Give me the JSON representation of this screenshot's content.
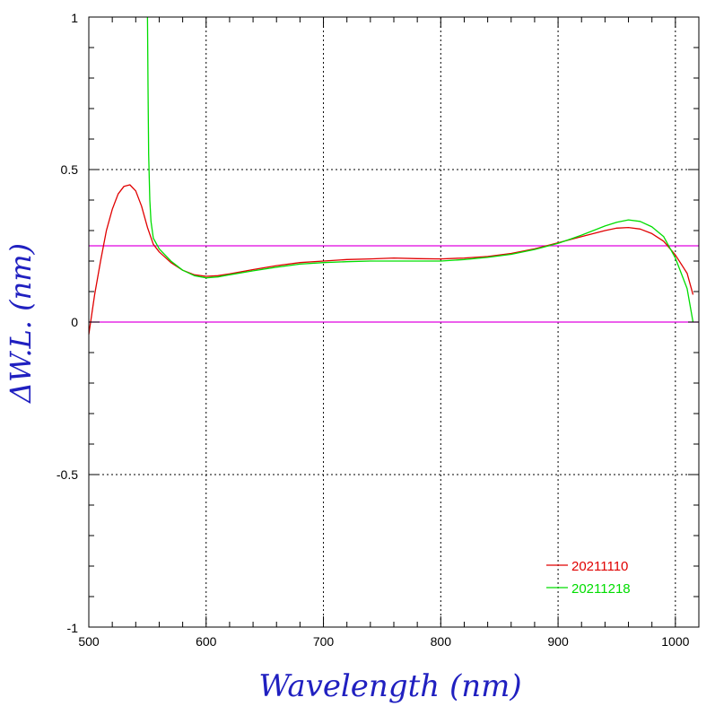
{
  "chart_data": {
    "type": "line",
    "title": "",
    "xlabel": "Wavelength (nm)",
    "ylabel": "ΔW.L. (nm)",
    "xlim": [
      500,
      1020
    ],
    "ylim": [
      -1,
      1
    ],
    "x_ticks": [
      500,
      600,
      700,
      800,
      900,
      1000
    ],
    "x_tick_labels": [
      "500",
      "600",
      "700",
      "800",
      "900",
      "1000"
    ],
    "y_ticks": [
      -1,
      -0.5,
      0,
      0.5,
      1
    ],
    "y_tick_labels": [
      "-1",
      "-0.5",
      "0",
      "0.5",
      "1"
    ],
    "grid": true,
    "legend_position": "bottom-right",
    "reference_lines": [
      {
        "y": 0,
        "color": "#e000e0"
      },
      {
        "y": 0.25,
        "color": "#e000e0"
      }
    ],
    "series": [
      {
        "name": "20211110",
        "color": "#e00000",
        "x": [
          500,
          505,
          510,
          515,
          520,
          525,
          530,
          535,
          540,
          545,
          550,
          555,
          560,
          570,
          580,
          590,
          600,
          610,
          620,
          640,
          660,
          680,
          700,
          720,
          740,
          760,
          780,
          800,
          820,
          840,
          860,
          880,
          900,
          920,
          940,
          950,
          960,
          970,
          980,
          990,
          1000,
          1010,
          1015
        ],
        "y": [
          -0.04,
          0.09,
          0.2,
          0.3,
          0.37,
          0.42,
          0.445,
          0.45,
          0.43,
          0.38,
          0.31,
          0.255,
          0.23,
          0.195,
          0.17,
          0.155,
          0.15,
          0.152,
          0.158,
          0.172,
          0.185,
          0.195,
          0.2,
          0.205,
          0.207,
          0.21,
          0.208,
          0.207,
          0.21,
          0.215,
          0.225,
          0.24,
          0.26,
          0.28,
          0.3,
          0.308,
          0.31,
          0.305,
          0.29,
          0.265,
          0.22,
          0.16,
          0.09
        ]
      },
      {
        "name": "20211218",
        "color": "#00dd00",
        "x": [
          550,
          550.5,
          551,
          552,
          553,
          555,
          560,
          570,
          580,
          590,
          600,
          610,
          620,
          640,
          660,
          680,
          700,
          720,
          740,
          760,
          780,
          800,
          820,
          840,
          860,
          880,
          900,
          920,
          940,
          950,
          960,
          970,
          980,
          990,
          1000,
          1010,
          1015
        ],
        "y": [
          1.0,
          0.77,
          0.55,
          0.4,
          0.33,
          0.275,
          0.24,
          0.2,
          0.17,
          0.152,
          0.145,
          0.148,
          0.155,
          0.168,
          0.18,
          0.19,
          0.195,
          0.198,
          0.2,
          0.2,
          0.2,
          0.2,
          0.205,
          0.212,
          0.222,
          0.238,
          0.258,
          0.285,
          0.315,
          0.327,
          0.335,
          0.33,
          0.312,
          0.28,
          0.21,
          0.11,
          0.0
        ]
      }
    ]
  }
}
